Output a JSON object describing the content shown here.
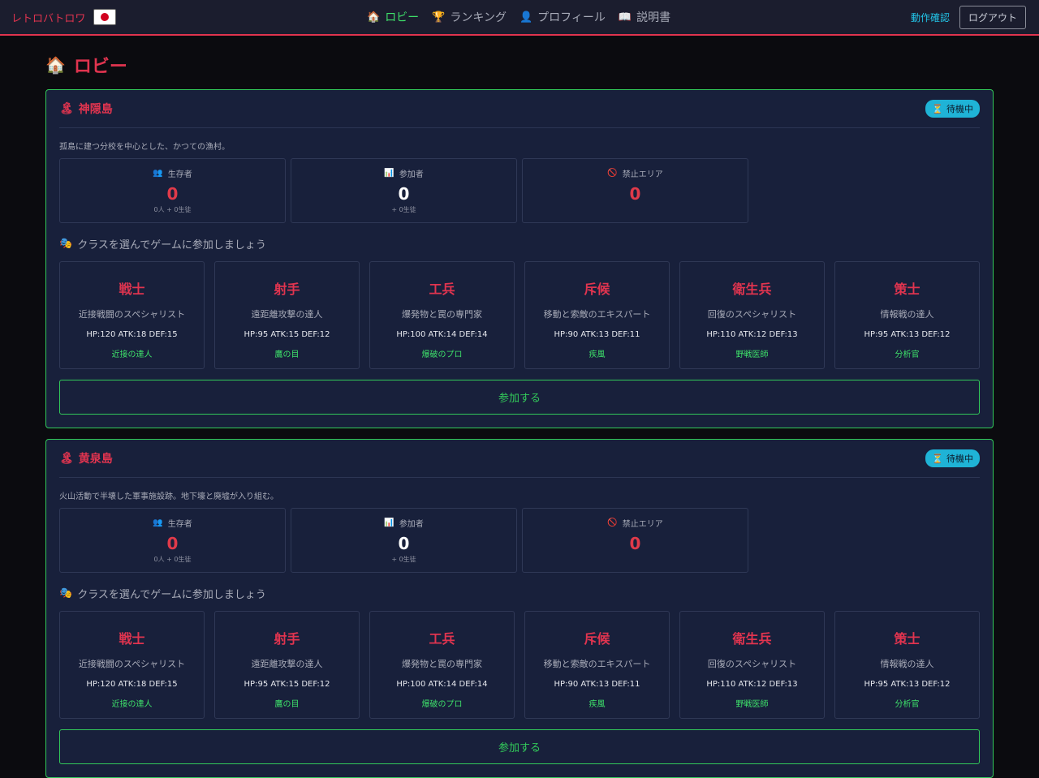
{
  "header": {
    "brand": "レトロバトロワ",
    "flag_icon": "japan-flag-icon",
    "nav": [
      {
        "icon": "🏠",
        "label": "ロビー",
        "active": true
      },
      {
        "icon": "🏆",
        "label": "ランキング",
        "active": false
      },
      {
        "icon": "👤",
        "label": "プロフィール",
        "active": false
      },
      {
        "icon": "📖",
        "label": "説明書",
        "active": false
      }
    ],
    "check_link": "動作確認",
    "logout": "ログアウト"
  },
  "page": {
    "icon": "🏠",
    "title": "ロビー"
  },
  "islands": [
    {
      "icon": "🏝",
      "name": "神隠島",
      "status_icon": "⏳",
      "status": "待機中",
      "description": "孤島に建つ分校を中心とした、かつての漁村。",
      "stats": [
        {
          "icon": "👥",
          "label": "生存者",
          "value": "0",
          "sub": "0人 + 0生徒"
        },
        {
          "icon": "📊",
          "label": "参加者",
          "value": "0",
          "sub": "+ 0生徒"
        },
        {
          "icon": "🚫",
          "label": "禁止エリア",
          "value": "0",
          "sub": ""
        }
      ],
      "cta_icon": "🎭",
      "cta": "クラスを選んでゲームに参加しましょう",
      "classes": [
        {
          "name": "戦士",
          "desc": "近接戦闘のスペシャリスト",
          "stats": "HP:120 ATK:18 DEF:15",
          "skill": "近接の達人"
        },
        {
          "name": "射手",
          "desc": "遠距離攻撃の達人",
          "stats": "HP:95 ATK:15 DEF:12",
          "skill": "鷹の目"
        },
        {
          "name": "工兵",
          "desc": "爆発物と罠の専門家",
          "stats": "HP:100 ATK:14 DEF:14",
          "skill": "爆破のプロ"
        },
        {
          "name": "斥候",
          "desc": "移動と索敵のエキスパート",
          "stats": "HP:90 ATK:13 DEF:11",
          "skill": "疾風"
        },
        {
          "name": "衛生兵",
          "desc": "回復のスペシャリスト",
          "stats": "HP:110 ATK:12 DEF:13",
          "skill": "野戦医師"
        },
        {
          "name": "策士",
          "desc": "情報戦の達人",
          "stats": "HP:95 ATK:13 DEF:12",
          "skill": "分析官"
        }
      ],
      "join": "参加する"
    },
    {
      "icon": "🏝",
      "name": "黄泉島",
      "status_icon": "⏳",
      "status": "待機中",
      "description": "火山活動で半壊した軍事施設跡。地下壕と廃墟が入り組む。",
      "stats": [
        {
          "icon": "👥",
          "label": "生存者",
          "value": "0",
          "sub": "0人 + 0生徒"
        },
        {
          "icon": "📊",
          "label": "参加者",
          "value": "0",
          "sub": "+ 0生徒"
        },
        {
          "icon": "🚫",
          "label": "禁止エリア",
          "value": "0",
          "sub": ""
        }
      ],
      "cta_icon": "🎭",
      "cta": "クラスを選んでゲームに参加しましょう",
      "classes": [
        {
          "name": "戦士",
          "desc": "近接戦闘のスペシャリスト",
          "stats": "HP:120 ATK:18 DEF:15",
          "skill": "近接の達人"
        },
        {
          "name": "射手",
          "desc": "遠距離攻撃の達人",
          "stats": "HP:95 ATK:15 DEF:12",
          "skill": "鷹の目"
        },
        {
          "name": "工兵",
          "desc": "爆発物と罠の専門家",
          "stats": "HP:100 ATK:14 DEF:14",
          "skill": "爆破のプロ"
        },
        {
          "name": "斥候",
          "desc": "移動と索敵のエキスパート",
          "stats": "HP:90 ATK:13 DEF:11",
          "skill": "疾風"
        },
        {
          "name": "衛生兵",
          "desc": "回復のスペシャリスト",
          "stats": "HP:110 ATK:12 DEF:13",
          "skill": "野戦医師"
        },
        {
          "name": "策士",
          "desc": "情報戦の達人",
          "stats": "HP:95 ATK:13 DEF:12",
          "skill": "分析官"
        }
      ],
      "join": "参加する"
    }
  ]
}
